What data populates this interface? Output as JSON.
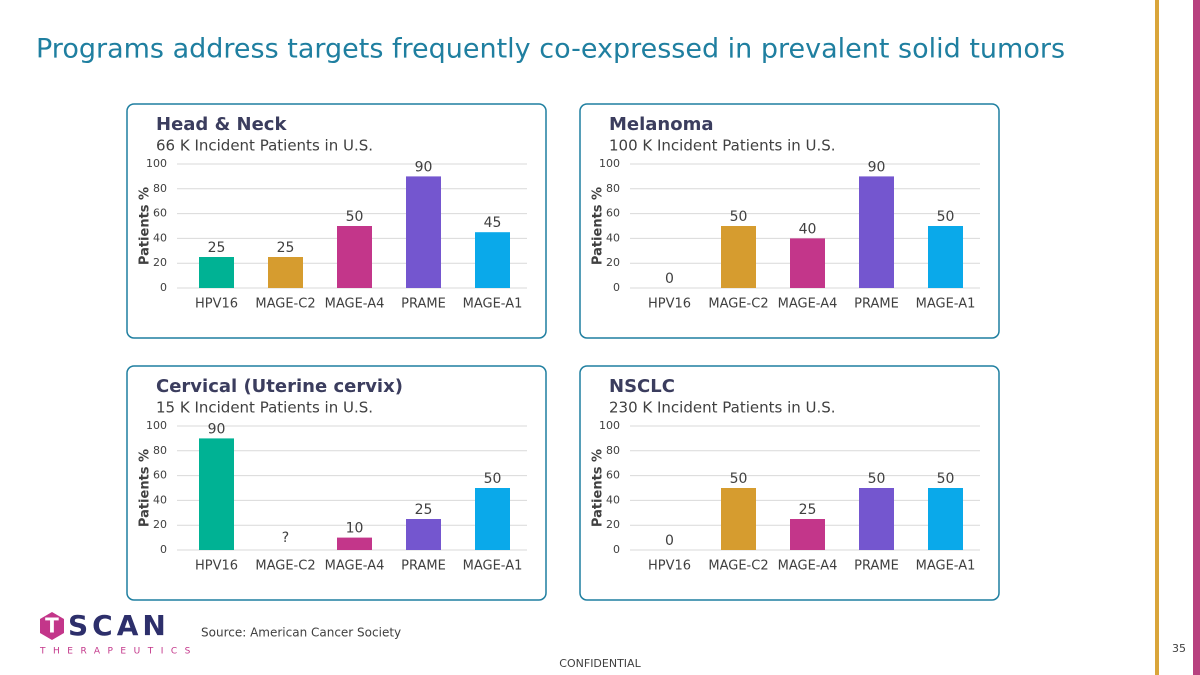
{
  "slide": {
    "title": "Programs address targets frequently co-expressed in prevalent solid tumors",
    "source": "Source: American Cancer Society",
    "footer": "CONFIDENTIAL",
    "page": "35",
    "logo_mark": "T",
    "logo_text": "SCAN",
    "logo_sub": "THERAPEUTICS"
  },
  "chart_data": [
    {
      "type": "bar",
      "title": "Head & Neck",
      "subtitle": "66 K Incident Patients in U.S.",
      "ylabel": "Patients %",
      "categories": [
        "HPV16",
        "MAGE-C2",
        "MAGE-A4",
        "PRAME",
        "MAGE-A1"
      ],
      "values": [
        25,
        25,
        50,
        90,
        45
      ],
      "colors": [
        "#00b294",
        "#d69c2f",
        "#c3368a",
        "#7456cf",
        "#0aa9ea"
      ],
      "ylim": [
        0,
        100
      ],
      "yticks": [
        0,
        20,
        40,
        60,
        80,
        100
      ],
      "grid": true
    },
    {
      "type": "bar",
      "title": "Melanoma",
      "subtitle": "100 K Incident Patients in U.S.",
      "ylabel": "Patients %",
      "categories": [
        "HPV16",
        "MAGE-C2",
        "MAGE-A4",
        "PRAME",
        "MAGE-A1"
      ],
      "values": [
        0,
        50,
        40,
        90,
        50
      ],
      "colors": [
        "#00b294",
        "#d69c2f",
        "#c3368a",
        "#7456cf",
        "#0aa9ea"
      ],
      "ylim": [
        0,
        100
      ],
      "yticks": [
        0,
        20,
        40,
        60,
        80,
        100
      ],
      "grid": true
    },
    {
      "type": "bar",
      "title": "Cervical (Uterine cervix)",
      "subtitle": "15 K Incident Patients in U.S.",
      "ylabel": "Patients %",
      "categories": [
        "HPV16",
        "MAGE-C2",
        "MAGE-A4",
        "PRAME",
        "MAGE-A1"
      ],
      "values": [
        90,
        null,
        10,
        25,
        50
      ],
      "value_labels": [
        "90",
        "?",
        "10",
        "25",
        "50"
      ],
      "colors": [
        "#00b294",
        "#d69c2f",
        "#c3368a",
        "#7456cf",
        "#0aa9ea"
      ],
      "ylim": [
        0,
        100
      ],
      "yticks": [
        0,
        20,
        40,
        60,
        80,
        100
      ],
      "grid": true
    },
    {
      "type": "bar",
      "title": "NSCLC",
      "subtitle": "230 K Incident Patients in U.S.",
      "ylabel": "Patients %",
      "categories": [
        "HPV16",
        "MAGE-C2",
        "MAGE-A4",
        "PRAME",
        "MAGE-A1"
      ],
      "values": [
        0,
        50,
        25,
        50,
        50
      ],
      "colors": [
        "#00b294",
        "#d69c2f",
        "#c3368a",
        "#7456cf",
        "#0aa9ea"
      ],
      "ylim": [
        0,
        100
      ],
      "yticks": [
        0,
        20,
        40,
        60,
        80,
        100
      ],
      "grid": true
    }
  ]
}
